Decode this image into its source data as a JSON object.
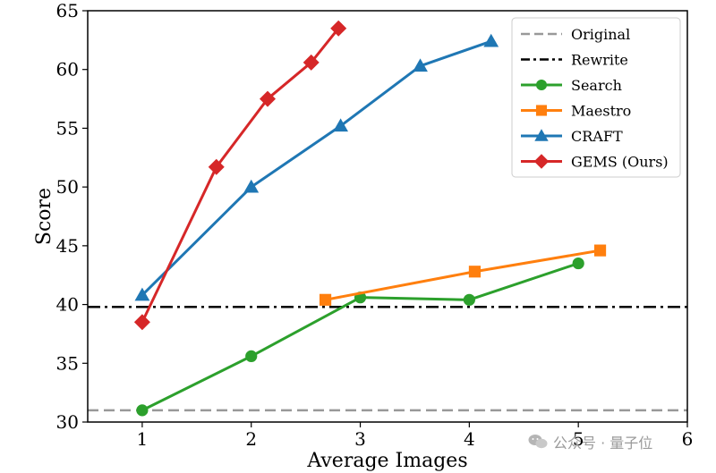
{
  "chart_data": {
    "type": "line",
    "xlabel": "Average Images",
    "ylabel": "Score",
    "xlim": [
      0.5,
      6
    ],
    "ylim": [
      30,
      65
    ],
    "xticks": [
      1,
      2,
      3,
      4,
      5,
      6
    ],
    "yticks": [
      30,
      35,
      40,
      45,
      50,
      55,
      60,
      65
    ],
    "legend_position": "top-right",
    "grid": false,
    "reference_lines": [
      {
        "name": "Original",
        "y": 31,
        "color": "#999999",
        "style": "dashed"
      },
      {
        "name": "Rewrite",
        "y": 39.8,
        "color": "#000000",
        "style": "dashdot"
      }
    ],
    "series": [
      {
        "name": "Search",
        "color": "#2ca02c",
        "marker": "circle",
        "x": [
          1,
          2,
          3,
          4,
          5
        ],
        "y": [
          31.0,
          35.6,
          40.6,
          40.4,
          43.5
        ]
      },
      {
        "name": "Maestro",
        "color": "#ff7f0e",
        "marker": "square",
        "x": [
          2.68,
          4.05,
          5.2
        ],
        "y": [
          40.4,
          42.8,
          44.6
        ]
      },
      {
        "name": "CRAFT",
        "color": "#1f77b4",
        "marker": "triangle",
        "x": [
          1.0,
          2.0,
          2.82,
          3.55,
          4.2
        ],
        "y": [
          40.8,
          50.0,
          55.2,
          60.3,
          62.4
        ]
      },
      {
        "name": "GEMS (Ours)",
        "color": "#d62728",
        "marker": "diamond",
        "x": [
          1.0,
          1.68,
          2.15,
          2.55,
          2.8
        ],
        "y": [
          38.5,
          51.7,
          57.5,
          60.6,
          63.5
        ]
      }
    ],
    "legend": [
      "Original",
      "Rewrite",
      "Search",
      "Maestro",
      "CRAFT",
      "GEMS (Ours)"
    ]
  },
  "watermark": {
    "text": "公众号 · 量子位",
    "icon": "wechat-icon"
  }
}
